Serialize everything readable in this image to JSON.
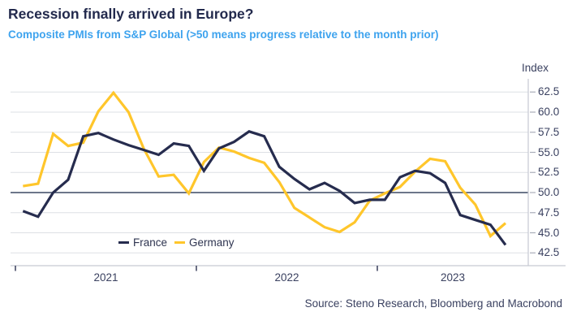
{
  "header": {
    "title": "Recession finally arrived in Europe?",
    "subtitle": "Composite PMIs from S&P Global (>50 means progress relative to the month prior)"
  },
  "footer": {
    "source": "Source: Steno Research, Bloomberg and Macrobond"
  },
  "colors": {
    "france_line": "#262C4E",
    "germany_line": "#FFC62B",
    "subtitle_accent": "#3EA3EE",
    "baseline_50": "#3C4963",
    "gridline": "#DDE0E5",
    "axis_line": "#C6C9D2",
    "axis_text": "#3A4160",
    "title_text": "#232A4D"
  },
  "chart_data": {
    "type": "line",
    "title": "Recession finally arrived in Europe?",
    "subtitle": "Composite PMIs from S&P Global (>50 means progress relative to the month prior)",
    "ylabel": "Index",
    "xlabel": "",
    "ylim": [
      42.5,
      62.5
    ],
    "ytick_step": 2.5,
    "y_ticks": [
      42.5,
      45.0,
      47.5,
      50.0,
      52.5,
      55.0,
      57.5,
      60.0,
      62.5
    ],
    "y_tick_labels": [
      "42.5",
      "45.0",
      "47.5",
      "50.0",
      "52.5",
      "55.0",
      "57.5",
      "60.0",
      "62.5"
    ],
    "baseline": 50,
    "grid": "horizontal",
    "legend_position": "bottom-left-inside",
    "x_ticks": [
      {
        "label": "2021"
      },
      {
        "label": "2022"
      },
      {
        "label": "2023"
      }
    ],
    "x": [
      "2021-01",
      "2021-02",
      "2021-03",
      "2021-04",
      "2021-05",
      "2021-06",
      "2021-07",
      "2021-08",
      "2021-09",
      "2021-10",
      "2021-11",
      "2021-12",
      "2022-01",
      "2022-02",
      "2022-03",
      "2022-04",
      "2022-05",
      "2022-06",
      "2022-07",
      "2022-08",
      "2022-09",
      "2022-10",
      "2022-11",
      "2022-12",
      "2023-01",
      "2023-02",
      "2023-03",
      "2023-04",
      "2023-05",
      "2023-06",
      "2023-07",
      "2023-08",
      "2023-09"
    ],
    "series": [
      {
        "name": "France",
        "color": "#262C4E",
        "values": [
          47.7,
          47.0,
          50.0,
          51.6,
          57.0,
          57.4,
          56.6,
          55.9,
          55.3,
          54.7,
          56.1,
          55.8,
          52.7,
          55.5,
          56.3,
          57.6,
          57.0,
          53.2,
          51.7,
          50.4,
          51.2,
          50.2,
          48.7,
          49.1,
          49.1,
          51.9,
          52.7,
          52.4,
          51.2,
          47.2,
          46.6,
          46.0,
          43.5
        ]
      },
      {
        "name": "Germany",
        "color": "#FFC62B",
        "values": [
          50.8,
          51.1,
          57.3,
          55.8,
          56.2,
          60.1,
          62.4,
          60.0,
          55.5,
          52.0,
          52.2,
          49.9,
          53.8,
          55.6,
          55.1,
          54.3,
          53.7,
          51.3,
          48.1,
          46.9,
          45.7,
          45.1,
          46.3,
          49.0,
          49.9,
          50.7,
          52.6,
          54.2,
          53.9,
          50.6,
          48.5,
          44.6,
          46.2
        ]
      }
    ]
  }
}
